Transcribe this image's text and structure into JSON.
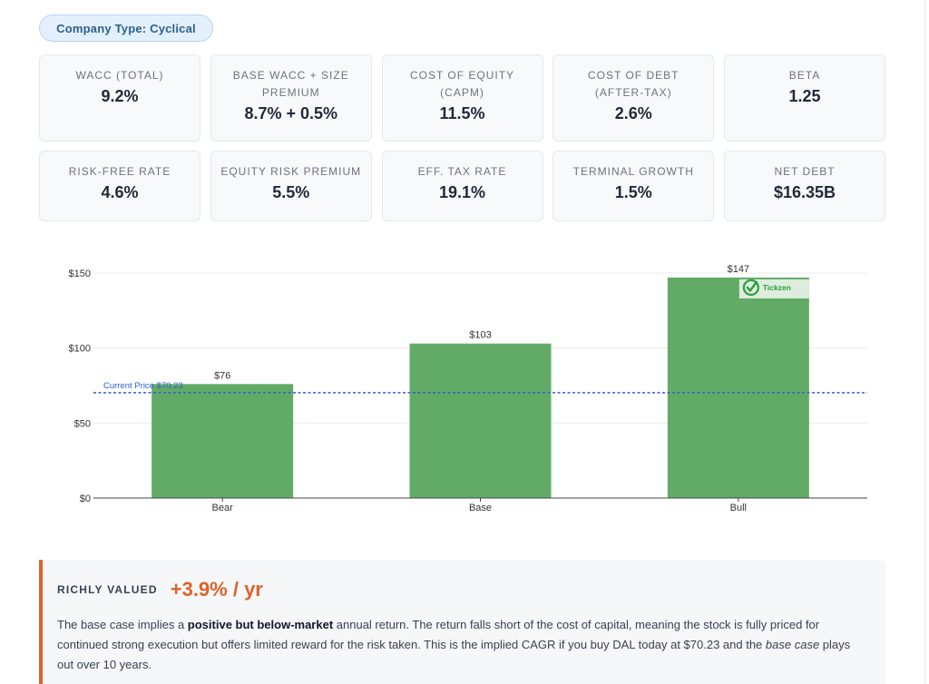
{
  "badge": {
    "label": "Company Type: Cyclical"
  },
  "metrics": [
    {
      "label": "WACC (TOTAL)",
      "value": "9.2%"
    },
    {
      "label": "BASE WACC + SIZE PREMIUM",
      "value": "8.7% + 0.5%"
    },
    {
      "label": "COST OF EQUITY (CAPM)",
      "value": "11.5%"
    },
    {
      "label": "COST OF DEBT (AFTER-TAX)",
      "value": "2.6%"
    },
    {
      "label": "BETA",
      "value": "1.25"
    },
    {
      "label": "RISK-FREE RATE",
      "value": "4.6%"
    },
    {
      "label": "EQUITY RISK PREMIUM",
      "value": "5.5%"
    },
    {
      "label": "EFF. TAX RATE",
      "value": "19.1%"
    },
    {
      "label": "TERMINAL GROWTH",
      "value": "1.5%"
    },
    {
      "label": "NET DEBT",
      "value": "$16.35B"
    }
  ],
  "chart_data": {
    "type": "bar",
    "categories": [
      "Bear",
      "Base",
      "Bull"
    ],
    "values": [
      76,
      103,
      147
    ],
    "value_labels": [
      "$76",
      "$103",
      "$147"
    ],
    "ylim": [
      0,
      150
    ],
    "yticks": [
      0,
      50,
      100,
      150
    ],
    "ytick_labels": [
      "$0",
      "$50",
      "$100",
      "$150"
    ],
    "bar_color": "#62ab67",
    "reference_line": {
      "value": 70.23,
      "label": "Current Price $70.23",
      "color": "#2f5fd0"
    },
    "grid": true
  },
  "watermark": {
    "text": "Tickzen",
    "color": "#2e9c3f"
  },
  "verdict": {
    "tag": "RICHLY VALUED",
    "rate": "+3.9% / yr",
    "accent": "#e0622a",
    "text_1": "The base case implies a ",
    "bold": "positive but below-market",
    "text_2": " annual return. The return falls short of the cost of capital, meaning the stock is fully priced for continued strong execution but offers limited reward for the risk taken. This is the implied CAGR if you buy DAL today at $70.23 and the ",
    "italic": "base case",
    "text_3": " plays out over 10 years."
  }
}
